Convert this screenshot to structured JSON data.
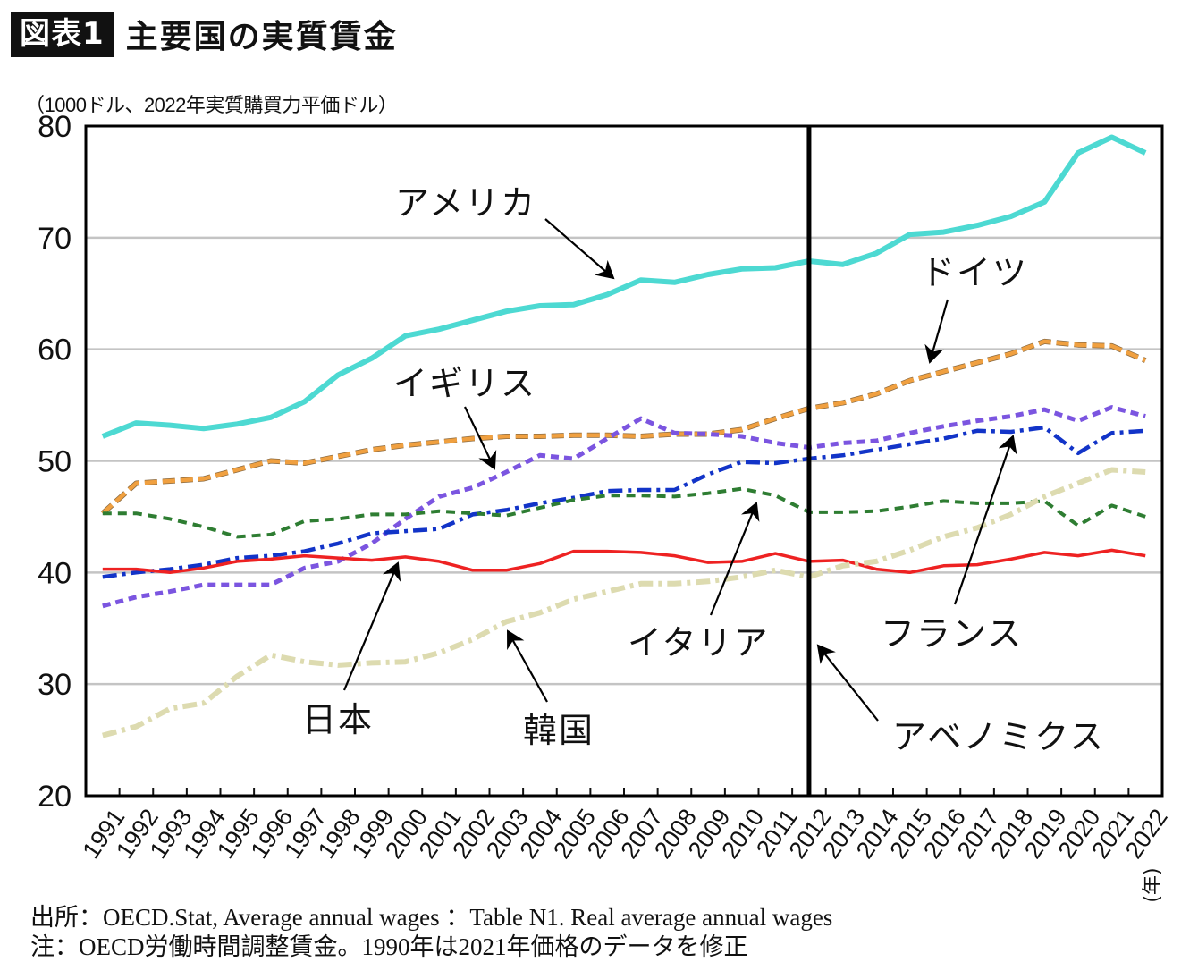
{
  "header": {
    "badge": "図表1",
    "title": "主要国の実質賃金",
    "unit_label": "（1000ドル、2022年実質購買力平価ドル）"
  },
  "chart_data": {
    "type": "line",
    "title": "主要国の実質賃金",
    "ylabel": "1000ドル、2022年実質購買力平価ドル",
    "xlabel": "年",
    "x_unit_label": "(年)",
    "ylim": [
      20,
      80
    ],
    "yticks": [
      20,
      30,
      40,
      50,
      60,
      70,
      80
    ],
    "grid": "horizontal",
    "legend": "inline-annotations",
    "categories": [
      "1991",
      "1992",
      "1993",
      "1994",
      "1995",
      "1996",
      "1997",
      "1998",
      "1999",
      "2000",
      "2001",
      "2002",
      "2003",
      "2004",
      "2005",
      "2006",
      "2007",
      "2008",
      "2009",
      "2010",
      "2011",
      "2012",
      "2013",
      "2014",
      "2015",
      "2016",
      "2017",
      "2018",
      "2019",
      "2020",
      "2021",
      "2022"
    ],
    "series": [
      {
        "key": "usa",
        "name": "アメリカ",
        "color": "#4DD9D2",
        "style": "solid",
        "values": [
          52.2,
          53.4,
          53.2,
          52.9,
          53.3,
          53.9,
          55.3,
          57.7,
          59.2,
          61.2,
          61.8,
          62.6,
          63.4,
          63.9,
          64.0,
          64.9,
          66.2,
          66.0,
          66.7,
          67.2,
          67.3,
          67.9,
          67.6,
          68.6,
          70.3,
          70.5,
          71.1,
          71.9,
          73.2,
          77.6,
          79.0,
          77.6
        ]
      },
      {
        "key": "germany",
        "name": "ドイツ",
        "color": "#F0A040",
        "style": "dashed",
        "values": [
          45.3,
          48.0,
          48.2,
          48.4,
          49.2,
          50.0,
          49.8,
          50.4,
          51.0,
          51.4,
          51.7,
          52.0,
          52.2,
          52.2,
          52.3,
          52.3,
          52.2,
          52.4,
          52.4,
          52.8,
          53.8,
          54.7,
          55.2,
          56.0,
          57.2,
          58.0,
          58.8,
          59.6,
          60.7,
          60.4,
          60.3,
          59.0
        ]
      },
      {
        "key": "uk",
        "name": "イギリス",
        "color": "#7B55E0",
        "style": "dotted",
        "values": [
          37.0,
          37.8,
          38.3,
          38.9,
          38.9,
          38.9,
          40.4,
          41.0,
          42.6,
          44.8,
          46.8,
          47.6,
          49.0,
          50.5,
          50.2,
          52.0,
          53.8,
          52.5,
          52.4,
          52.2,
          51.6,
          51.2,
          51.6,
          51.8,
          52.5,
          53.1,
          53.6,
          54.0,
          54.6,
          53.6,
          54.8,
          54.0
        ]
      },
      {
        "key": "france",
        "name": "フランス",
        "color": "#1234C8",
        "style": "dashdot",
        "values": [
          39.6,
          40.0,
          40.3,
          40.7,
          41.3,
          41.5,
          41.9,
          42.6,
          43.5,
          43.7,
          43.9,
          45.2,
          45.6,
          46.2,
          46.7,
          47.3,
          47.4,
          47.4,
          48.8,
          49.9,
          49.8,
          50.2,
          50.5,
          51.0,
          51.5,
          52.0,
          52.7,
          52.6,
          53.0,
          50.7,
          52.5,
          52.7
        ]
      },
      {
        "key": "italy",
        "name": "イタリア",
        "color": "#2E7D32",
        "style": "dashed-short",
        "values": [
          45.3,
          45.3,
          44.8,
          44.1,
          43.2,
          43.4,
          44.6,
          44.8,
          45.2,
          45.2,
          45.5,
          45.3,
          45.1,
          45.8,
          46.5,
          46.9,
          46.9,
          46.8,
          47.1,
          47.5,
          46.9,
          45.4,
          45.4,
          45.5,
          45.9,
          46.4,
          46.2,
          46.2,
          46.4,
          44.2,
          46.0,
          45.0
        ]
      },
      {
        "key": "japan",
        "name": "日本",
        "color": "#EE2222",
        "style": "solid",
        "values": [
          40.3,
          40.3,
          40.0,
          40.4,
          41.0,
          41.2,
          41.5,
          41.3,
          41.1,
          41.4,
          41.0,
          40.2,
          40.2,
          40.8,
          41.9,
          41.9,
          41.8,
          41.5,
          40.9,
          41.0,
          41.7,
          41.0,
          41.1,
          40.3,
          40.0,
          40.6,
          40.7,
          41.2,
          41.8,
          41.5,
          42.0,
          41.5
        ]
      },
      {
        "key": "korea",
        "name": "韓国",
        "color": "#DDDBB0",
        "style": "dashdot",
        "values": [
          25.4,
          26.2,
          27.8,
          28.3,
          30.7,
          32.6,
          32.0,
          31.7,
          31.9,
          32.0,
          32.8,
          34.0,
          35.6,
          36.4,
          37.6,
          38.3,
          39.0,
          39.0,
          39.2,
          39.6,
          40.2,
          39.6,
          40.6,
          41.0,
          42.0,
          43.2,
          44.0,
          45.2,
          46.8,
          48.0,
          49.2,
          49.0
        ]
      }
    ],
    "marker_line": {
      "category": "2012",
      "label": "アベノミクス"
    },
    "annotations": [
      {
        "text": "アメリカ",
        "series": "usa",
        "category": "2007"
      },
      {
        "text": "ドイツ",
        "series": "germany",
        "category": "2015"
      },
      {
        "text": "イギリス",
        "series": "uk",
        "category": "2003"
      },
      {
        "text": "フランス",
        "series": "france",
        "category": "2018"
      },
      {
        "text": "イタリア",
        "series": "italy",
        "category": "2010"
      },
      {
        "text": "日本",
        "series": "japan",
        "category": "2000"
      },
      {
        "text": "韓国",
        "series": "korea",
        "category": "2003"
      },
      {
        "text": "アベノミクス",
        "series": null,
        "category": "2012"
      }
    ]
  },
  "notes": {
    "source": "出所：OECD.Stat, Average annual wages ：Table N1. Real average annual wages",
    "note": "注：OECD労働時間調整賃金。1990年は2021年価格のデータを修正"
  }
}
